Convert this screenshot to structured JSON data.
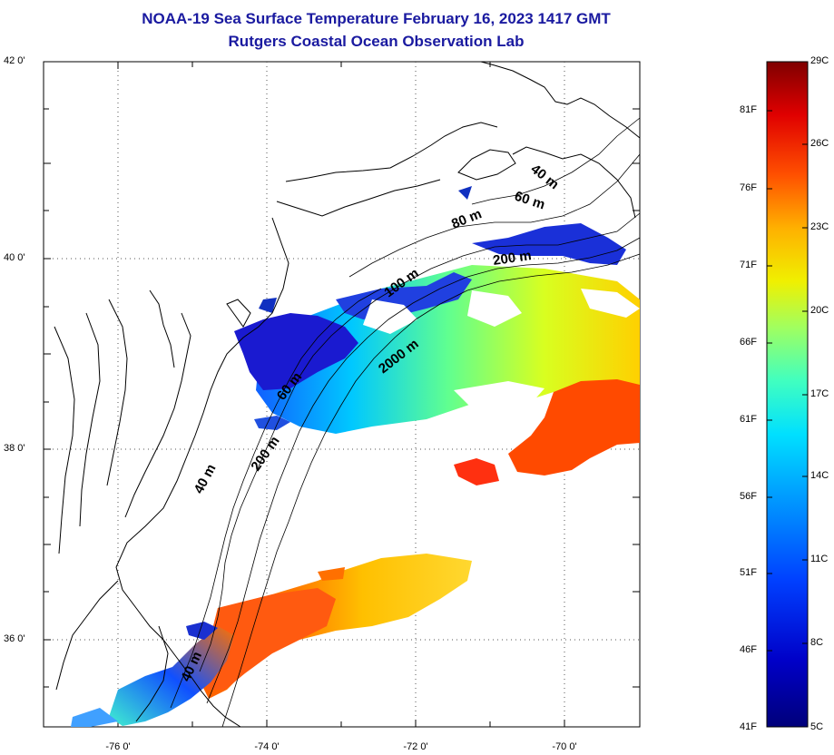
{
  "header": {
    "title": "NOAA-19 Sea Surface Temperature February 16, 2023 1417 GMT",
    "subtitle": "Rutgers Coastal Ocean Observation Lab"
  },
  "map": {
    "lat_ticks": [
      "42 0'",
      "40 0'",
      "38 0'",
      "36 0'"
    ],
    "lon_ticks": [
      "-76 0'",
      "-74 0'",
      "-72 0'",
      "-70 0'"
    ],
    "isobath_labels": [
      "40 m",
      "60 m",
      "80 m",
      "200 m",
      "100 m",
      "2000 m",
      "60 m",
      "200 m",
      "40 m",
      "40 m"
    ]
  },
  "colorbar": {
    "fahrenheit": [
      "81F",
      "76F",
      "71F",
      "66F",
      "61F",
      "56F",
      "51F",
      "46F",
      "41F"
    ],
    "celsius": [
      "29C",
      "26C",
      "23C",
      "20C",
      "17C",
      "14C",
      "11C",
      "8C",
      "5C"
    ],
    "colors": [
      "#7f0000",
      "#d40000",
      "#ff3000",
      "#ff8a00",
      "#ffd400",
      "#c8ff30",
      "#60ffa0",
      "#00e4ff",
      "#0090ff",
      "#0030ff",
      "#0000b4",
      "#00007a"
    ]
  }
}
